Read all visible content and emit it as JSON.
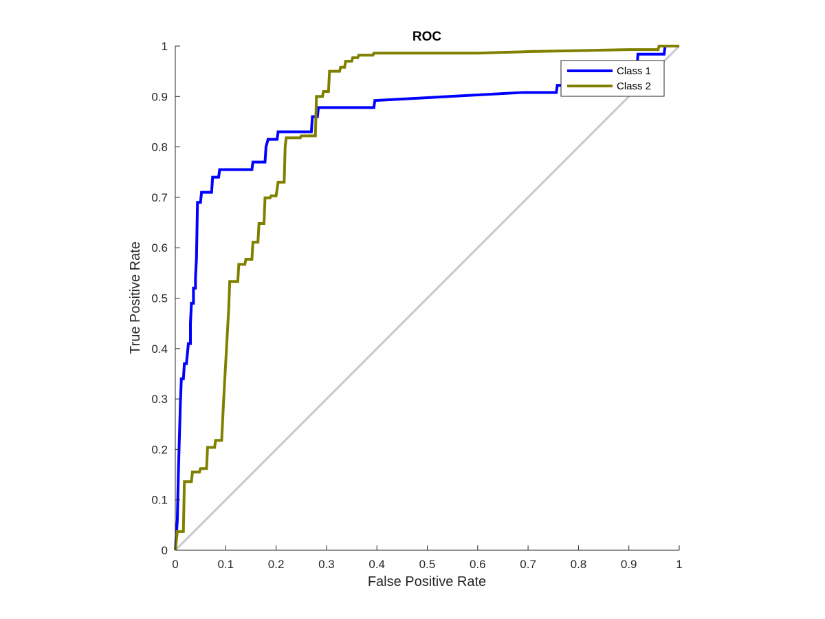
{
  "chart_data": {
    "type": "line",
    "title": "ROC",
    "xlabel": "False Positive Rate",
    "ylabel": "True Positive Rate",
    "xlim": [
      0,
      1
    ],
    "ylim": [
      0,
      1
    ],
    "xticks": [
      "0",
      "0.1",
      "0.2",
      "0.3",
      "0.4",
      "0.5",
      "0.6",
      "0.7",
      "0.8",
      "0.9",
      "1"
    ],
    "yticks": [
      "0",
      "0.1",
      "0.2",
      "0.3",
      "0.4",
      "0.5",
      "0.6",
      "0.7",
      "0.8",
      "0.9",
      "1"
    ],
    "grid": false,
    "legend_position": "top-right",
    "series": [
      {
        "name": "Class 1",
        "color": "#0000ff",
        "points": [
          [
            0,
            0
          ],
          [
            0.004,
            0.06
          ],
          [
            0.006,
            0.15
          ],
          [
            0.008,
            0.22
          ],
          [
            0.01,
            0.29
          ],
          [
            0.012,
            0.34
          ],
          [
            0.016,
            0.34
          ],
          [
            0.018,
            0.37
          ],
          [
            0.022,
            0.37
          ],
          [
            0.024,
            0.39
          ],
          [
            0.026,
            0.41
          ],
          [
            0.03,
            0.41
          ],
          [
            0.03,
            0.45
          ],
          [
            0.032,
            0.49
          ],
          [
            0.036,
            0.49
          ],
          [
            0.036,
            0.52
          ],
          [
            0.04,
            0.52
          ],
          [
            0.04,
            0.54
          ],
          [
            0.042,
            0.58
          ],
          [
            0.044,
            0.69
          ],
          [
            0.05,
            0.69
          ],
          [
            0.052,
            0.71
          ],
          [
            0.072,
            0.71
          ],
          [
            0.074,
            0.74
          ],
          [
            0.086,
            0.74
          ],
          [
            0.088,
            0.755
          ],
          [
            0.152,
            0.755
          ],
          [
            0.154,
            0.77
          ],
          [
            0.178,
            0.77
          ],
          [
            0.18,
            0.8
          ],
          [
            0.184,
            0.815
          ],
          [
            0.202,
            0.815
          ],
          [
            0.204,
            0.83
          ],
          [
            0.27,
            0.83
          ],
          [
            0.272,
            0.86
          ],
          [
            0.282,
            0.86
          ],
          [
            0.284,
            0.878
          ],
          [
            0.394,
            0.878
          ],
          [
            0.396,
            0.892
          ],
          [
            0.69,
            0.908
          ],
          [
            0.756,
            0.908
          ],
          [
            0.758,
            0.922
          ],
          [
            0.914,
            0.922
          ],
          [
            0.918,
            0.984
          ],
          [
            0.97,
            0.984
          ],
          [
            0.972,
            1.0
          ],
          [
            1.0,
            1.0
          ]
        ]
      },
      {
        "name": "Class 2",
        "color": "#808000",
        "points": [
          [
            0,
            0
          ],
          [
            0.004,
            0.037
          ],
          [
            0.016,
            0.037
          ],
          [
            0.018,
            0.136
          ],
          [
            0.032,
            0.136
          ],
          [
            0.034,
            0.155
          ],
          [
            0.048,
            0.155
          ],
          [
            0.05,
            0.162
          ],
          [
            0.062,
            0.162
          ],
          [
            0.064,
            0.204
          ],
          [
            0.078,
            0.204
          ],
          [
            0.08,
            0.218
          ],
          [
            0.092,
            0.218
          ],
          [
            0.096,
            0.3
          ],
          [
            0.106,
            0.48
          ],
          [
            0.108,
            0.533
          ],
          [
            0.124,
            0.533
          ],
          [
            0.126,
            0.567
          ],
          [
            0.138,
            0.567
          ],
          [
            0.14,
            0.577
          ],
          [
            0.152,
            0.577
          ],
          [
            0.154,
            0.611
          ],
          [
            0.164,
            0.611
          ],
          [
            0.166,
            0.648
          ],
          [
            0.176,
            0.648
          ],
          [
            0.178,
            0.699
          ],
          [
            0.188,
            0.699
          ],
          [
            0.19,
            0.703
          ],
          [
            0.2,
            0.703
          ],
          [
            0.204,
            0.73
          ],
          [
            0.216,
            0.73
          ],
          [
            0.218,
            0.8
          ],
          [
            0.22,
            0.818
          ],
          [
            0.248,
            0.818
          ],
          [
            0.25,
            0.822
          ],
          [
            0.278,
            0.822
          ],
          [
            0.28,
            0.9
          ],
          [
            0.292,
            0.9
          ],
          [
            0.294,
            0.91
          ],
          [
            0.304,
            0.91
          ],
          [
            0.306,
            0.95
          ],
          [
            0.326,
            0.95
          ],
          [
            0.328,
            0.958
          ],
          [
            0.336,
            0.958
          ],
          [
            0.338,
            0.97
          ],
          [
            0.35,
            0.97
          ],
          [
            0.352,
            0.977
          ],
          [
            0.362,
            0.977
          ],
          [
            0.364,
            0.982
          ],
          [
            0.392,
            0.982
          ],
          [
            0.394,
            0.986
          ],
          [
            0.6,
            0.986
          ],
          [
            0.7,
            0.989
          ],
          [
            0.8,
            0.991
          ],
          [
            0.9,
            0.993
          ],
          [
            0.958,
            0.993
          ],
          [
            0.96,
            1.0
          ],
          [
            1.0,
            1.0
          ]
        ]
      }
    ],
    "reference_line": {
      "points": [
        [
          0,
          0
        ],
        [
          1,
          1
        ]
      ],
      "color": "#c8c8c8"
    }
  }
}
